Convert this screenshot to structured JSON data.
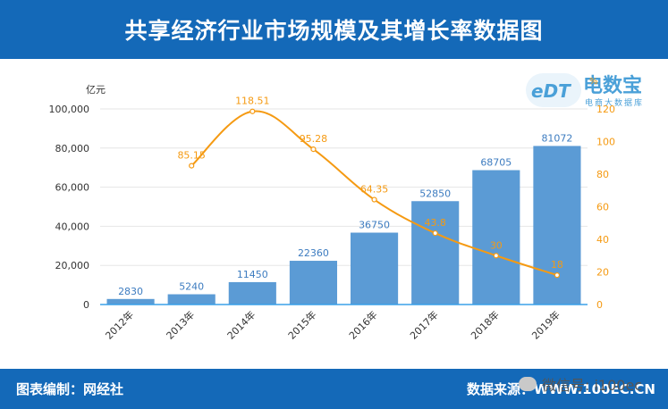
{
  "header": {
    "title": "共享经济行业市场规模及其增长率数据图"
  },
  "footer": {
    "credit": "图表编制：网经社",
    "source": "数据来源：WWW.100EC.CN"
  },
  "logo": {
    "mark": "eDT",
    "name": "电数宝",
    "sub": "电商大数据库"
  },
  "watermark": {
    "text": "微信号: i100ec"
  },
  "colors": {
    "bar": "#5b9bd5",
    "line": "#f59a12",
    "band": "#1469b8"
  },
  "chart_data": {
    "type": "bar",
    "categories": [
      "2012年",
      "2013年",
      "2014年",
      "2015年",
      "2016年",
      "2017年",
      "2018年",
      "2019年"
    ],
    "series": [
      {
        "values": [
          2830,
          5240,
          11450,
          22360,
          36750,
          52850,
          68705,
          81072
        ]
      },
      {
        "type": "line",
        "values": [
          null,
          85.15,
          118.51,
          95.28,
          64.35,
          43.8,
          30,
          18
        ]
      }
    ],
    "ylabel": "亿元",
    "y2label": "%",
    "ylim": [
      0,
      100000
    ],
    "y2lim": [
      0,
      120
    ],
    "yticks": [
      "0",
      "20,000",
      "40,000",
      "60,000",
      "80,000",
      "100,000"
    ],
    "y2ticks": [
      "0",
      "20",
      "40",
      "60",
      "80",
      "100",
      "120"
    ],
    "grid": true,
    "legend": "none"
  }
}
